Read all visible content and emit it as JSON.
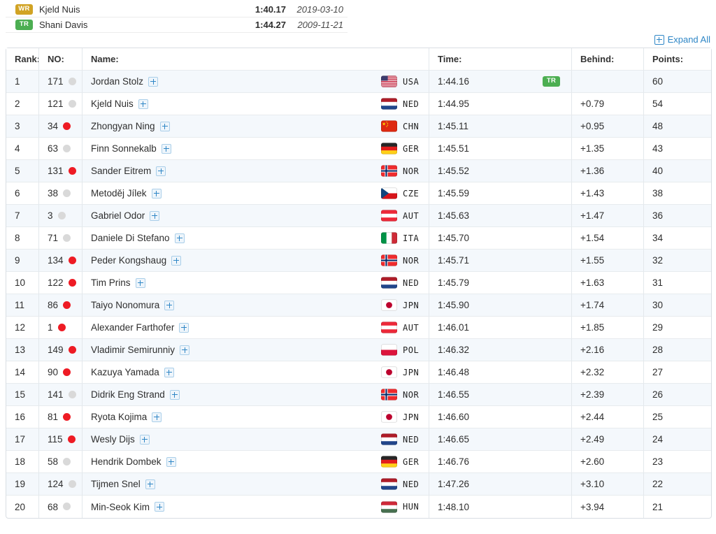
{
  "records": [
    {
      "badge": "WR",
      "name": "Kjeld Nuis",
      "time": "1:40.17",
      "date": "2019-03-10"
    },
    {
      "badge": "TR",
      "name": "Shani Davis",
      "time": "1:44.27",
      "date": "2009-11-21"
    }
  ],
  "expand_all_label": "Expand All",
  "table": {
    "headers": {
      "rank": "Rank:",
      "no": "NO:",
      "name": "Name:",
      "time": "Time:",
      "behind": "Behind:",
      "points": "Points:"
    },
    "rows": [
      {
        "rank": "1",
        "no": "171",
        "dot": "gray",
        "name": "Jordan Stolz",
        "country": "USA",
        "time": "1:44.16",
        "badge": "TR",
        "behind": "",
        "points": "60"
      },
      {
        "rank": "2",
        "no": "121",
        "dot": "gray",
        "name": "Kjeld Nuis",
        "country": "NED",
        "time": "1:44.95",
        "badge": "",
        "behind": "+0.79",
        "points": "54"
      },
      {
        "rank": "3",
        "no": "34",
        "dot": "red",
        "name": "Zhongyan Ning",
        "country": "CHN",
        "time": "1:45.11",
        "badge": "",
        "behind": "+0.95",
        "points": "48"
      },
      {
        "rank": "4",
        "no": "63",
        "dot": "gray",
        "name": "Finn Sonnekalb",
        "country": "GER",
        "time": "1:45.51",
        "badge": "",
        "behind": "+1.35",
        "points": "43"
      },
      {
        "rank": "5",
        "no": "131",
        "dot": "red",
        "name": "Sander Eitrem",
        "country": "NOR",
        "time": "1:45.52",
        "badge": "",
        "behind": "+1.36",
        "points": "40"
      },
      {
        "rank": "6",
        "no": "38",
        "dot": "gray",
        "name": "Metoděj Jílek",
        "country": "CZE",
        "time": "1:45.59",
        "badge": "",
        "behind": "+1.43",
        "points": "38"
      },
      {
        "rank": "7",
        "no": "3",
        "dot": "gray",
        "name": "Gabriel Odor",
        "country": "AUT",
        "time": "1:45.63",
        "badge": "",
        "behind": "+1.47",
        "points": "36"
      },
      {
        "rank": "8",
        "no": "71",
        "dot": "gray",
        "name": "Daniele Di Stefano",
        "country": "ITA",
        "time": "1:45.70",
        "badge": "",
        "behind": "+1.54",
        "points": "34"
      },
      {
        "rank": "9",
        "no": "134",
        "dot": "red",
        "name": "Peder Kongshaug",
        "country": "NOR",
        "time": "1:45.71",
        "badge": "",
        "behind": "+1.55",
        "points": "32"
      },
      {
        "rank": "10",
        "no": "122",
        "dot": "red",
        "name": "Tim Prins",
        "country": "NED",
        "time": "1:45.79",
        "badge": "",
        "behind": "+1.63",
        "points": "31"
      },
      {
        "rank": "11",
        "no": "86",
        "dot": "red",
        "name": "Taiyo Nonomura",
        "country": "JPN",
        "time": "1:45.90",
        "badge": "",
        "behind": "+1.74",
        "points": "30"
      },
      {
        "rank": "12",
        "no": "1",
        "dot": "red",
        "name": "Alexander Farthofer",
        "country": "AUT",
        "time": "1:46.01",
        "badge": "",
        "behind": "+1.85",
        "points": "29"
      },
      {
        "rank": "13",
        "no": "149",
        "dot": "red",
        "name": "Vladimir Semirunniy",
        "country": "POL",
        "time": "1:46.32",
        "badge": "",
        "behind": "+2.16",
        "points": "28"
      },
      {
        "rank": "14",
        "no": "90",
        "dot": "red",
        "name": "Kazuya Yamada",
        "country": "JPN",
        "time": "1:46.48",
        "badge": "",
        "behind": "+2.32",
        "points": "27"
      },
      {
        "rank": "15",
        "no": "141",
        "dot": "gray",
        "name": "Didrik Eng Strand",
        "country": "NOR",
        "time": "1:46.55",
        "badge": "",
        "behind": "+2.39",
        "points": "26"
      },
      {
        "rank": "16",
        "no": "81",
        "dot": "red",
        "name": "Ryota Kojima",
        "country": "JPN",
        "time": "1:46.60",
        "badge": "",
        "behind": "+2.44",
        "points": "25"
      },
      {
        "rank": "17",
        "no": "115",
        "dot": "red",
        "name": "Wesly Dijs",
        "country": "NED",
        "time": "1:46.65",
        "badge": "",
        "behind": "+2.49",
        "points": "24"
      },
      {
        "rank": "18",
        "no": "58",
        "dot": "gray",
        "name": "Hendrik Dombek",
        "country": "GER",
        "time": "1:46.76",
        "badge": "",
        "behind": "+2.60",
        "points": "23"
      },
      {
        "rank": "19",
        "no": "124",
        "dot": "gray",
        "name": "Tijmen Snel",
        "country": "NED",
        "time": "1:47.26",
        "badge": "",
        "behind": "+3.10",
        "points": "22"
      },
      {
        "rank": "20",
        "no": "68",
        "dot": "gray",
        "name": "Min-Seok Kim",
        "country": "HUN",
        "time": "1:48.10",
        "badge": "",
        "behind": "+3.94",
        "points": "21"
      }
    ]
  },
  "colors": {
    "link": "#2e86c6",
    "wr_badge": "#d1a324",
    "tr_badge": "#4cae52",
    "row_alt": "#f4f8fc",
    "red_dot": "#ee1b24",
    "gray_dot": "#d9d9d9"
  }
}
